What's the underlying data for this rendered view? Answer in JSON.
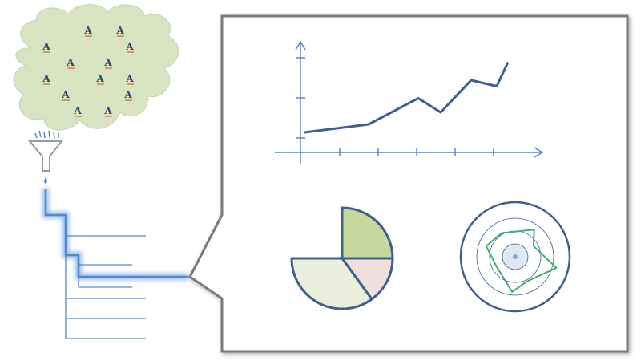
{
  "colors": {
    "cloud_fill": "#d7e3c1",
    "letter": "#2e4668",
    "letter_underline": "#e05a5a",
    "funnel": "#9a9a9a",
    "drop": "#4a8fd4",
    "tree_line": "#5b86c4",
    "glow": "#7fb0ee",
    "panel_border": "#7a7a7a",
    "axis": "#5b86c4",
    "line_series": "#3f5f8f",
    "pie_green": "#c6d89c",
    "pie_pink": "#f1dede",
    "pie_light": "#e9efdc",
    "pie_stroke": "#3f5f8f",
    "radar_stroke": "#3fae6a",
    "radar_ring": "#3f5f8f",
    "radar_center": "#dfe8f3"
  },
  "cloud": {
    "letter": "A",
    "letter_count": 13
  },
  "tree": {
    "branch_count": 8
  },
  "icons": [
    "cloud-icon",
    "funnel-icon",
    "water-drop-icon",
    "callout-panel-icon"
  ],
  "chart_data": [
    {
      "type": "line",
      "x": [
        0,
        1,
        2,
        3,
        4,
        5,
        6
      ],
      "values": [
        1.0,
        1.4,
        2.7,
        2.0,
        3.6,
        3.3,
        4.5
      ],
      "x_ticks": 5,
      "y_ticks": 3,
      "title": "",
      "xlabel": "",
      "ylabel": ""
    },
    {
      "type": "pie",
      "values": [
        25,
        15,
        35
      ],
      "title": ""
    },
    {
      "type": "radar",
      "values": [
        0.62,
        0.75,
        0.48,
        0.97,
        0.62,
        0.8,
        0.48,
        0.7
      ],
      "rings": 3,
      "title": ""
    }
  ]
}
